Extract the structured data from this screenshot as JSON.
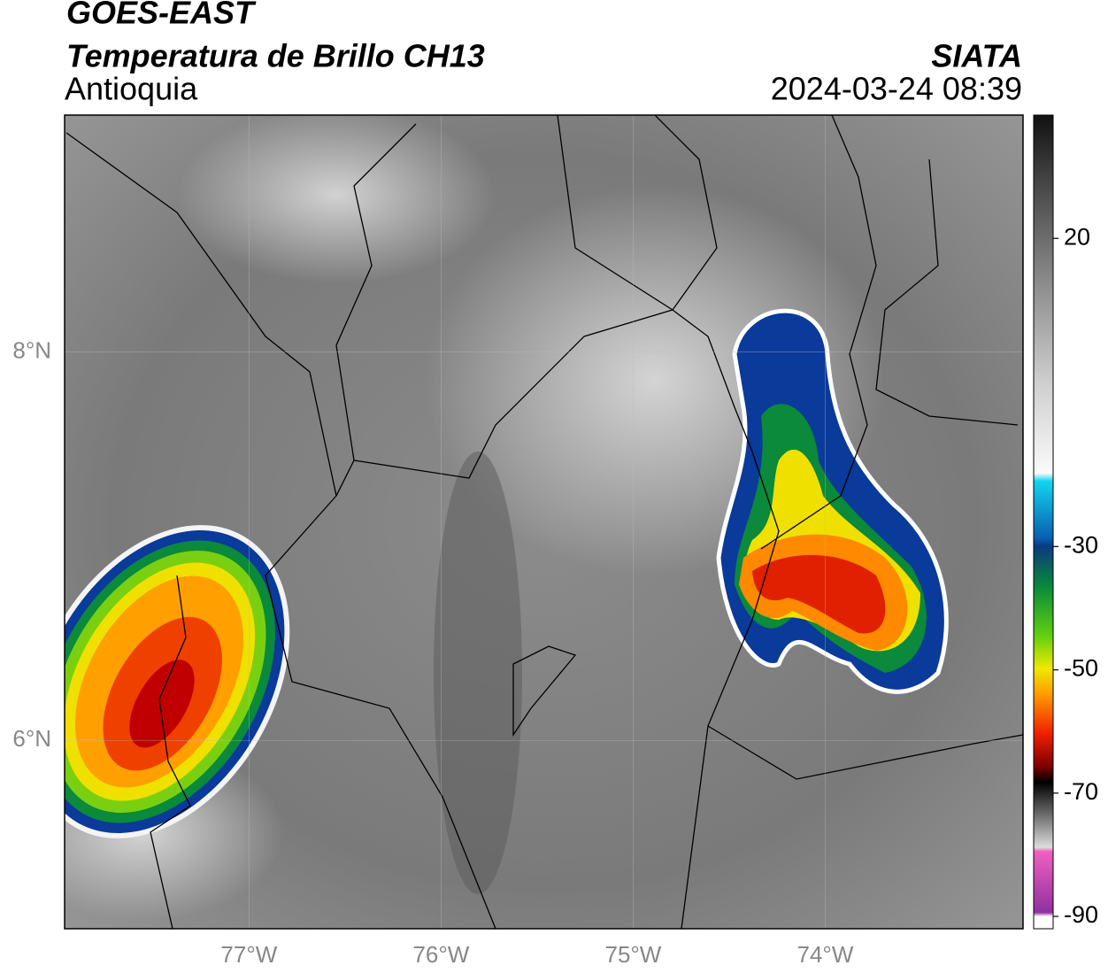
{
  "chart_data": {
    "type": "map",
    "title": "GOES-EAST",
    "subtitle": "Temperatura de Brillo CH13",
    "region": "Antioquia",
    "source": "SIATA",
    "datetime": "2024-03-24 08:39",
    "xlim": [
      -77.96,
      -72.97
    ],
    "ylim": [
      5.03,
      9.22
    ],
    "xticks": [
      {
        "value": -77,
        "label": "77°W"
      },
      {
        "value": -76,
        "label": "76°W"
      },
      {
        "value": -75,
        "label": "75°W"
      },
      {
        "value": -74,
        "label": "74°W"
      }
    ],
    "yticks": [
      {
        "value": 6,
        "label": "6°N"
      },
      {
        "value": 8,
        "label": "8°N"
      }
    ],
    "colorbar": {
      "lim": [
        -92,
        40
      ],
      "ticks": [
        -90,
        -70,
        -50,
        -30,
        20
      ]
    },
    "grid": true
  }
}
